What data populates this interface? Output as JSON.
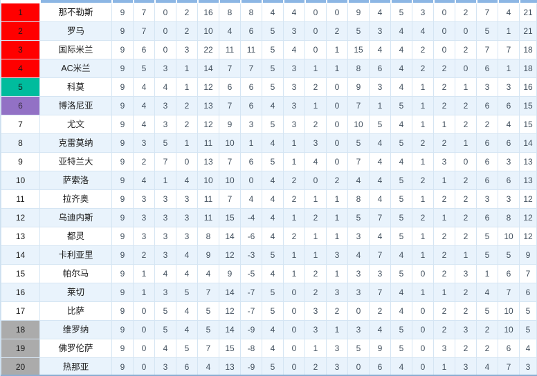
{
  "table": {
    "description": "Serie A league standings table, header cropped; columns are position, team, overall P/W/D/L/F/A/GD, home P/W/D/L/F/A, away P/W/D/L/F/A, points",
    "rows": [
      {
        "pos": "1",
        "team": "那不勒斯",
        "zone": "red",
        "stats": [
          "9",
          "7",
          "0",
          "2",
          "16",
          "8",
          "8",
          "4",
          "4",
          "0",
          "0",
          "9",
          "4",
          "5",
          "3",
          "0",
          "2",
          "7",
          "4",
          "21"
        ]
      },
      {
        "pos": "2",
        "team": "罗马",
        "zone": "red",
        "stats": [
          "9",
          "7",
          "0",
          "2",
          "10",
          "4",
          "6",
          "5",
          "3",
          "0",
          "2",
          "5",
          "3",
          "4",
          "4",
          "0",
          "0",
          "5",
          "1",
          "21"
        ]
      },
      {
        "pos": "3",
        "team": "国际米兰",
        "zone": "red",
        "stats": [
          "9",
          "6",
          "0",
          "3",
          "22",
          "11",
          "11",
          "5",
          "4",
          "0",
          "1",
          "15",
          "4",
          "4",
          "2",
          "0",
          "2",
          "7",
          "7",
          "18"
        ]
      },
      {
        "pos": "4",
        "team": "AC米兰",
        "zone": "red",
        "stats": [
          "9",
          "5",
          "3",
          "1",
          "14",
          "7",
          "7",
          "5",
          "3",
          "1",
          "1",
          "8",
          "6",
          "4",
          "2",
          "2",
          "0",
          "6",
          "1",
          "18"
        ]
      },
      {
        "pos": "5",
        "team": "科莫",
        "zone": "teal",
        "stats": [
          "9",
          "4",
          "4",
          "1",
          "12",
          "6",
          "6",
          "5",
          "3",
          "2",
          "0",
          "9",
          "3",
          "4",
          "1",
          "2",
          "1",
          "3",
          "3",
          "16"
        ]
      },
      {
        "pos": "6",
        "team": "博洛尼亚",
        "zone": "purple",
        "stats": [
          "9",
          "4",
          "3",
          "2",
          "13",
          "7",
          "6",
          "4",
          "3",
          "1",
          "0",
          "7",
          "1",
          "5",
          "1",
          "2",
          "2",
          "6",
          "6",
          "15"
        ]
      },
      {
        "pos": "7",
        "team": "尤文",
        "zone": "none",
        "stats": [
          "9",
          "4",
          "3",
          "2",
          "12",
          "9",
          "3",
          "5",
          "3",
          "2",
          "0",
          "10",
          "5",
          "4",
          "1",
          "1",
          "2",
          "2",
          "4",
          "15"
        ]
      },
      {
        "pos": "8",
        "team": "克雷莫纳",
        "zone": "none",
        "stats": [
          "9",
          "3",
          "5",
          "1",
          "11",
          "10",
          "1",
          "4",
          "1",
          "3",
          "0",
          "5",
          "4",
          "5",
          "2",
          "2",
          "1",
          "6",
          "6",
          "14"
        ]
      },
      {
        "pos": "9",
        "team": "亚特兰大",
        "zone": "none",
        "stats": [
          "9",
          "2",
          "7",
          "0",
          "13",
          "7",
          "6",
          "5",
          "1",
          "4",
          "0",
          "7",
          "4",
          "4",
          "1",
          "3",
          "0",
          "6",
          "3",
          "13"
        ]
      },
      {
        "pos": "10",
        "team": "萨索洛",
        "zone": "none",
        "stats": [
          "9",
          "4",
          "1",
          "4",
          "10",
          "10",
          "0",
          "4",
          "2",
          "0",
          "2",
          "4",
          "4",
          "5",
          "2",
          "1",
          "2",
          "6",
          "6",
          "13"
        ]
      },
      {
        "pos": "11",
        "team": "拉齐奥",
        "zone": "none",
        "stats": [
          "9",
          "3",
          "3",
          "3",
          "11",
          "7",
          "4",
          "4",
          "2",
          "1",
          "1",
          "8",
          "4",
          "5",
          "1",
          "2",
          "2",
          "3",
          "3",
          "12"
        ]
      },
      {
        "pos": "12",
        "team": "乌迪内斯",
        "zone": "none",
        "stats": [
          "9",
          "3",
          "3",
          "3",
          "11",
          "15",
          "-4",
          "4",
          "1",
          "2",
          "1",
          "5",
          "7",
          "5",
          "2",
          "1",
          "2",
          "6",
          "8",
          "12"
        ]
      },
      {
        "pos": "13",
        "team": "都灵",
        "zone": "none",
        "stats": [
          "9",
          "3",
          "3",
          "3",
          "8",
          "14",
          "-6",
          "4",
          "2",
          "1",
          "1",
          "3",
          "4",
          "5",
          "1",
          "2",
          "2",
          "5",
          "10",
          "12"
        ]
      },
      {
        "pos": "14",
        "team": "卡利亚里",
        "zone": "none",
        "stats": [
          "9",
          "2",
          "3",
          "4",
          "9",
          "12",
          "-3",
          "5",
          "1",
          "1",
          "3",
          "4",
          "7",
          "4",
          "1",
          "2",
          "1",
          "5",
          "5",
          "9"
        ]
      },
      {
        "pos": "15",
        "team": "帕尔马",
        "zone": "none",
        "stats": [
          "9",
          "1",
          "4",
          "4",
          "4",
          "9",
          "-5",
          "4",
          "1",
          "2",
          "1",
          "3",
          "3",
          "5",
          "0",
          "2",
          "3",
          "1",
          "6",
          "7"
        ]
      },
      {
        "pos": "16",
        "team": "莱切",
        "zone": "none",
        "stats": [
          "9",
          "1",
          "3",
          "5",
          "7",
          "14",
          "-7",
          "5",
          "0",
          "2",
          "3",
          "3",
          "7",
          "4",
          "1",
          "1",
          "2",
          "4",
          "7",
          "6"
        ]
      },
      {
        "pos": "17",
        "team": "比萨",
        "zone": "none",
        "stats": [
          "9",
          "0",
          "5",
          "4",
          "5",
          "12",
          "-7",
          "5",
          "0",
          "3",
          "2",
          "0",
          "2",
          "4",
          "0",
          "2",
          "2",
          "5",
          "10",
          "5"
        ]
      },
      {
        "pos": "18",
        "team": "维罗纳",
        "zone": "gray",
        "stats": [
          "9",
          "0",
          "5",
          "4",
          "5",
          "14",
          "-9",
          "4",
          "0",
          "3",
          "1",
          "3",
          "4",
          "5",
          "0",
          "2",
          "3",
          "2",
          "10",
          "5"
        ]
      },
      {
        "pos": "19",
        "team": "佛罗伦萨",
        "zone": "gray",
        "stats": [
          "9",
          "0",
          "4",
          "5",
          "7",
          "15",
          "-8",
          "4",
          "0",
          "1",
          "3",
          "5",
          "9",
          "5",
          "0",
          "3",
          "2",
          "2",
          "6",
          "4"
        ]
      },
      {
        "pos": "20",
        "team": "热那亚",
        "zone": "gray",
        "stats": [
          "9",
          "0",
          "3",
          "6",
          "4",
          "13",
          "-9",
          "5",
          "0",
          "2",
          "3",
          "0",
          "6",
          "4",
          "0",
          "1",
          "3",
          "4",
          "7",
          "3"
        ]
      }
    ]
  },
  "colors": {
    "zone_red": "#ff0000",
    "zone_teal": "#00bc9d",
    "zone_purple": "#9271c5",
    "zone_gray": "#ababab",
    "row_stripe": "#e9f3fc",
    "header_strip": "#8cb6e4",
    "cell_border": "#d5e5f3",
    "bottom_bar": "#8aadd2"
  }
}
